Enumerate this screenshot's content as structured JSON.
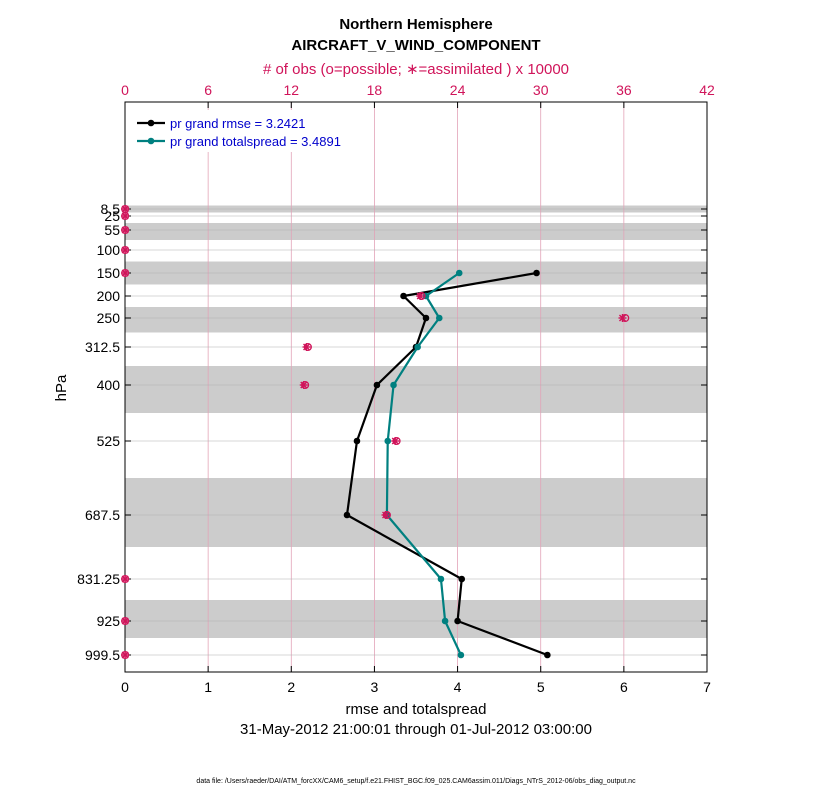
{
  "chart_data": {
    "type": "line",
    "title": "Northern Hemisphere",
    "subtitle": "AIRCRAFT_V_WIND_COMPONENT",
    "top_axis_label": "# of obs (o=possible; ∗=assimilated ) x 10000",
    "xlabel": "rmse and totalspread",
    "ylabel": "hPa",
    "date_range": "31-May-2012 21:00:01 through 01-Jul-2012 03:00:00",
    "footnote": "data file: /Users/raeder/DAI/ATM_forcXX/CAM6_setup/f.e21.FHIST_BGC.f09_025.CAM6assim.011/Diags_NTrS_2012-06/obs_diag_output.nc",
    "xlim": [
      0,
      7
    ],
    "x_ticks": [
      "0",
      "1",
      "2",
      "3",
      "4",
      "5",
      "6",
      "7"
    ],
    "top_xlim": [
      0,
      42
    ],
    "top_ticks": [
      "0",
      "6",
      "12",
      "18",
      "24",
      "30",
      "36",
      "42"
    ],
    "y_ticks": [
      "8.5",
      "25",
      "55",
      "100",
      "150",
      "200",
      "250",
      "312.5",
      "400",
      "525",
      "687.5",
      "831.25",
      "925",
      "999.5"
    ],
    "levels": [
      8.5,
      25,
      55,
      100,
      150,
      200,
      250,
      312.5,
      400,
      525,
      687.5,
      831.25,
      925,
      999.5
    ],
    "legend_position": "top-left",
    "colors": {
      "rmse": "#000000",
      "spread": "#008080",
      "obs": "#d0145a",
      "band": "#cccccc"
    },
    "series": [
      {
        "name": "pr grand rmse = 3.2421",
        "levels": [
          150,
          200,
          250,
          312.5,
          400,
          525,
          687.5,
          831.25,
          925,
          999.5
        ],
        "values": [
          4.95,
          3.35,
          3.62,
          3.5,
          3.03,
          2.79,
          2.67,
          4.05,
          4.0,
          5.08
        ]
      },
      {
        "name": "pr grand totalspread = 3.4891",
        "levels": [
          150,
          200,
          250,
          312.5,
          400,
          525,
          687.5,
          831.25,
          925,
          999.5
        ],
        "values": [
          4.02,
          3.62,
          3.78,
          3.52,
          3.23,
          3.16,
          3.15,
          3.8,
          3.85,
          4.04
        ]
      }
    ],
    "obs_counts": {
      "levels": [
        8.5,
        25,
        55,
        100,
        150,
        200,
        250,
        312.5,
        400,
        525,
        687.5,
        831.25,
        925,
        999.5
      ],
      "possible": [
        0.01,
        0.01,
        0.01,
        0.01,
        0.01,
        21.4,
        36.1,
        13.2,
        13.0,
        19.6,
        18.9,
        0.01,
        0.01,
        0.01
      ],
      "assimilated": [
        0.01,
        0.01,
        0.01,
        0.01,
        0.01,
        21.3,
        35.9,
        13.1,
        12.9,
        19.5,
        18.8,
        0.01,
        0.01,
        0.01
      ]
    }
  }
}
